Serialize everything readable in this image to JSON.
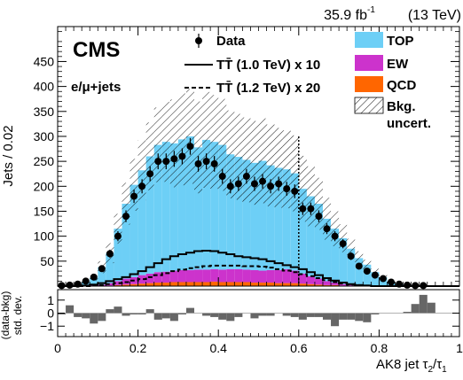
{
  "header": {
    "lumi": "35.9 fb",
    "lumi_sup": "-1",
    "energy": "(13 TeV)",
    "experiment": "CMS",
    "channel": "e/μ+jets"
  },
  "colors": {
    "top": "#6dcff6",
    "ew": "#cc33cc",
    "qcd": "#ff6600",
    "signal": "#000000",
    "ratio": "#666666"
  },
  "chart_data": [
    {
      "type": "bar",
      "xlabel_main": "AK8 jet τ",
      "xlabel_sub1": "2",
      "xlabel_mid": "/τ",
      "xlabel_sub2": "1",
      "ylabel": "Jets / 0.02",
      "xlim": [
        0,
        1
      ],
      "ylim": [
        0,
        520
      ],
      "x_ticks": [
        "0",
        "0.2",
        "0.4",
        "0.6",
        "0.8",
        "1"
      ],
      "y_ticks": [
        "50",
        "100",
        "150",
        "200",
        "250",
        "300",
        "350",
        "400",
        "450"
      ],
      "bin_width": 0.02,
      "bin_low_edges": [
        0.0,
        0.02,
        0.04,
        0.06,
        0.08,
        0.1,
        0.12,
        0.14,
        0.16,
        0.18,
        0.2,
        0.22,
        0.24,
        0.26,
        0.28,
        0.3,
        0.32,
        0.34,
        0.36,
        0.38,
        0.4,
        0.42,
        0.44,
        0.46,
        0.48,
        0.5,
        0.52,
        0.54,
        0.56,
        0.58,
        0.6,
        0.62,
        0.64,
        0.66,
        0.68,
        0.7,
        0.72,
        0.74,
        0.76,
        0.78,
        0.8,
        0.82,
        0.84,
        0.86,
        0.88,
        0.9,
        0.92,
        0.94,
        0.96,
        0.98
      ],
      "series": [
        {
          "name": "TOP",
          "values": [
            0,
            0,
            2,
            8,
            15,
            35,
            60,
            105,
            150,
            185,
            210,
            235,
            255,
            260,
            255,
            262,
            268,
            245,
            260,
            255,
            250,
            230,
            225,
            220,
            215,
            220,
            210,
            205,
            200,
            195,
            170,
            160,
            150,
            125,
            108,
            92,
            72,
            55,
            42,
            28,
            18,
            8,
            4,
            2,
            0,
            0,
            0,
            0,
            0,
            0
          ]
        },
        {
          "name": "EW",
          "values": [
            0,
            0,
            0,
            1,
            2,
            3,
            5,
            8,
            12,
            14,
            17,
            19,
            21,
            22,
            23,
            24,
            24,
            25,
            25,
            25,
            25,
            26,
            26,
            25,
            25,
            24,
            25,
            26,
            28,
            25,
            20,
            16,
            12,
            8,
            5,
            3,
            2,
            1,
            1,
            0,
            0,
            0,
            0,
            0,
            0,
            0,
            0,
            0,
            0,
            0
          ]
        },
        {
          "name": "QCD",
          "values": [
            0,
            0,
            0,
            0,
            0,
            0,
            1,
            2,
            3,
            4,
            5,
            6,
            7,
            7,
            8,
            8,
            8,
            8,
            8,
            9,
            8,
            8,
            8,
            8,
            7,
            7,
            7,
            6,
            6,
            6,
            5,
            4,
            3,
            2,
            2,
            1,
            1,
            0,
            0,
            0,
            0,
            0,
            0,
            0,
            0,
            0,
            0,
            0,
            0,
            0
          ]
        },
        {
          "name": "Bkg. uncert.",
          "values": [
            0,
            0,
            2,
            3,
            6,
            12,
            20,
            30,
            42,
            52,
            60,
            68,
            75,
            80,
            88,
            92,
            95,
            92,
            96,
            94,
            92,
            88,
            86,
            85,
            84,
            85,
            82,
            80,
            78,
            76,
            66,
            60,
            52,
            42,
            35,
            28,
            20,
            14,
            10,
            7,
            4,
            2,
            1,
            1,
            0,
            0,
            0,
            0,
            0,
            0
          ]
        },
        {
          "name": "Data",
          "values": [
            1,
            2,
            4,
            10,
            18,
            35,
            65,
            100,
            140,
            180,
            200,
            225,
            250,
            250,
            255,
            260,
            280,
            245,
            250,
            245,
            220,
            200,
            205,
            220,
            205,
            210,
            200,
            205,
            195,
            190,
            155,
            155,
            140,
            115,
            100,
            85,
            60,
            40,
            30,
            22,
            15,
            8,
            4,
            2,
            1,
            1,
            0,
            0,
            0,
            0
          ]
        },
        {
          "name": "TT̄ (1.0 TeV) x 10",
          "values": [
            0,
            0,
            0,
            1,
            3,
            6,
            10,
            14,
            18,
            24,
            30,
            38,
            46,
            54,
            60,
            64,
            67,
            70,
            71,
            70,
            67,
            64,
            60,
            58,
            56,
            54,
            50,
            46,
            42,
            38,
            34,
            28,
            22,
            16,
            11,
            7,
            4,
            2,
            1,
            0,
            0,
            0,
            0,
            0,
            0,
            0,
            0,
            0,
            0,
            0
          ]
        },
        {
          "name": "TT̄ (1.2 TeV) x 20",
          "values": [
            0,
            0,
            0,
            0,
            1,
            2,
            4,
            6,
            8,
            11,
            14,
            18,
            22,
            26,
            30,
            33,
            36,
            38,
            40,
            41,
            41,
            41,
            41,
            40,
            40,
            39,
            37,
            34,
            31,
            28,
            24,
            20,
            16,
            12,
            8,
            5,
            3,
            2,
            1,
            0,
            0,
            0,
            0,
            0,
            0,
            0,
            0,
            0,
            0,
            0
          ]
        }
      ],
      "legend": [
        {
          "label": "Data",
          "kind": "marker"
        },
        {
          "label": "TT̄ (1.0 TeV) x 10",
          "kind": "solid"
        },
        {
          "label": "TT̄ (1.2 TeV) x 20",
          "kind": "dashed"
        },
        {
          "label": "TOP",
          "kind": "fill"
        },
        {
          "label": "EW",
          "kind": "fill"
        },
        {
          "label": "QCD",
          "kind": "fill"
        },
        {
          "label": "Bkg.",
          "label2": "uncert.",
          "kind": "hatch"
        }
      ],
      "legend_position": "top-right",
      "cut_line_x": 0.6
    },
    {
      "type": "bar",
      "ylabel_line1": "(data-bkg)",
      "ylabel_line2": "std. dev.",
      "ylim": [
        -1.8,
        1.8
      ],
      "y_ticks": [
        "1",
        "0",
        "−1"
      ],
      "values": [
        -0.1,
        0.6,
        -0.3,
        -0.4,
        -0.8,
        -0.6,
        0.3,
        0.5,
        -0.2,
        -0.1,
        -0.1,
        0.3,
        -0.5,
        -0.4,
        -0.6,
        -0.1,
        0.4,
        0.0,
        -0.2,
        -0.3,
        -0.5,
        -0.6,
        -0.3,
        0.0,
        -0.4,
        -0.2,
        -0.2,
        0.0,
        -0.2,
        -0.3,
        -0.5,
        -0.3,
        -0.3,
        -0.5,
        -1.0,
        -0.5,
        -0.5,
        -0.6,
        -0.7,
        -0.1,
        0.0,
        0.0,
        0.0,
        0.1,
        0.7,
        1.4,
        0.8,
        0.0,
        0.0,
        0.0
      ]
    }
  ]
}
